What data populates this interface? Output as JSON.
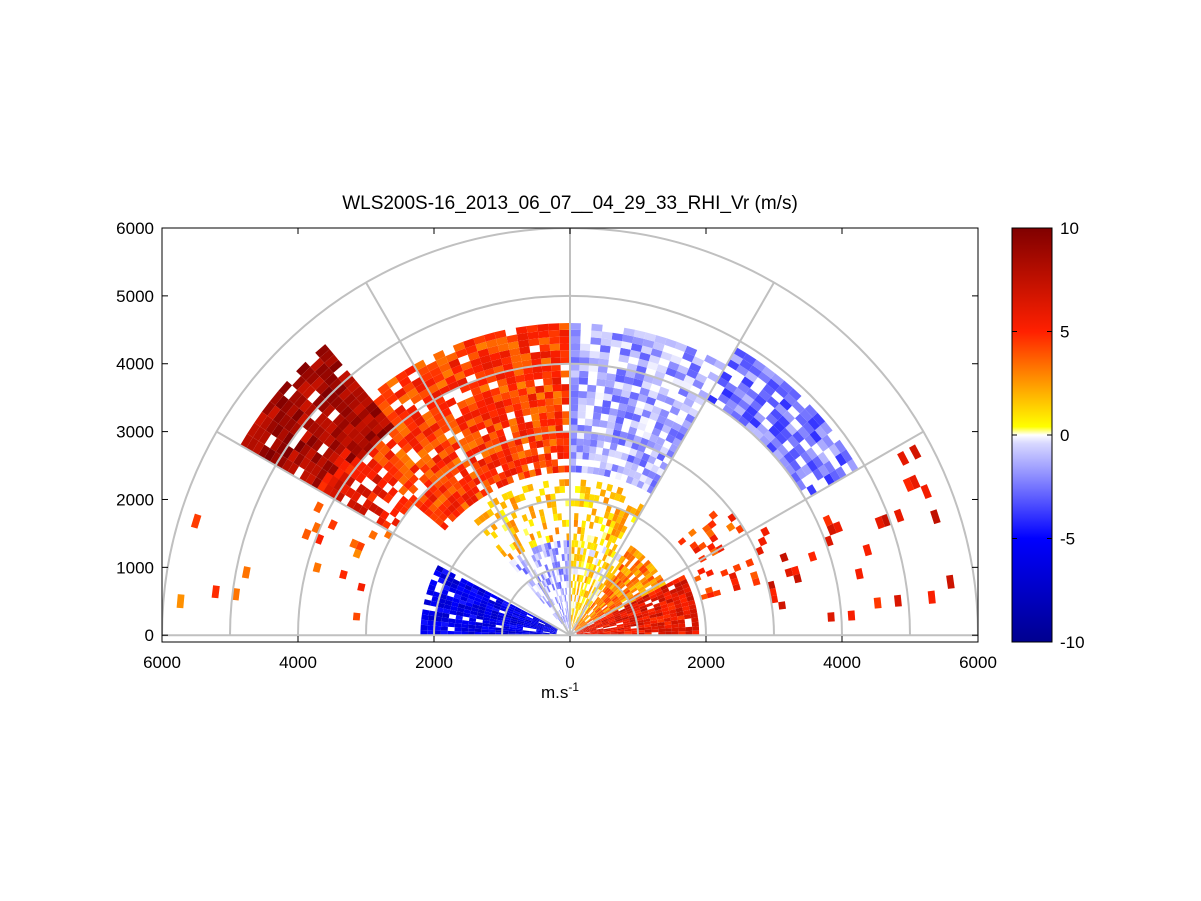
{
  "chart_data": {
    "type": "heatmap",
    "subtype": "polar-rhi-sector",
    "title": "WLS200S-16_2013_06_07__04_29_33_RHI_Vr (m/s)",
    "xlabel_base": "m.s",
    "xlabel_sup": "-1",
    "xlim": [
      -6000,
      6000
    ],
    "ylim": [
      -100,
      6000
    ],
    "x_tick_values": [
      -6000,
      -4000,
      -2000,
      0,
      2000,
      4000,
      6000
    ],
    "x_tick_labels": [
      "6000",
      "4000",
      "2000",
      "0",
      "2000",
      "4000",
      "6000"
    ],
    "y_tick_values": [
      0,
      1000,
      2000,
      3000,
      4000,
      5000,
      6000
    ],
    "y_tick_labels": [
      "0",
      "1000",
      "2000",
      "3000",
      "4000",
      "5000",
      "6000"
    ],
    "range_rings": [
      1000,
      2000,
      3000,
      4000,
      5000,
      6000
    ],
    "spoke_angles_deg": [
      0,
      30,
      60,
      90,
      120,
      150,
      180
    ],
    "colorbar": {
      "min": -10,
      "max": 10,
      "tick_values": [
        10,
        5,
        0,
        -5,
        -10
      ],
      "tick_labels": [
        "10",
        "5",
        "0",
        "-5",
        "-10"
      ],
      "colormap": "blue-white-yellow-red"
    },
    "regions": [
      {
        "r": [
          100,
          1900
        ],
        "theta_deg": [
          0,
          28
        ],
        "value": 6,
        "density": 0.95
      },
      {
        "r": [
          100,
          1600
        ],
        "theta_deg": [
          28,
          55
        ],
        "value": 3,
        "density": 0.85
      },
      {
        "r": [
          100,
          1400
        ],
        "theta_deg": [
          55,
          90
        ],
        "value": 1,
        "density": 0.7
      },
      {
        "r": [
          100,
          1400
        ],
        "theta_deg": [
          90,
          130
        ],
        "value": -1.5,
        "density": 0.6
      },
      {
        "r": [
          200,
          2200
        ],
        "theta_deg": [
          152,
          180
        ],
        "value": -6,
        "density": 0.9
      },
      {
        "r": [
          1400,
          2300
        ],
        "theta_deg": [
          60,
          130
        ],
        "value": 1.5,
        "density": 0.45
      },
      {
        "r": [
          2400,
          4600
        ],
        "theta_deg": [
          90,
          140
        ],
        "value": 4.5,
        "density": 0.9
      },
      {
        "r": [
          4000,
          5600
        ],
        "theta_deg": [
          130,
          150
        ],
        "value": 8.5,
        "density": 0.9
      },
      {
        "r": [
          3000,
          4300
        ],
        "theta_deg": [
          140,
          150
        ],
        "value": 6,
        "density": 0.7
      },
      {
        "r": [
          2400,
          4600
        ],
        "theta_deg": [
          60,
          90
        ],
        "value": -1.5,
        "density": 0.75
      },
      {
        "r": [
          4000,
          4900
        ],
        "theta_deg": [
          30,
          60
        ],
        "value": -2.5,
        "density": 0.85
      },
      {
        "r": [
          2000,
          3000
        ],
        "theta_deg": [
          15,
          40
        ],
        "value": 4.5,
        "density": 0.25
      },
      {
        "r": [
          3000,
          5800
        ],
        "theta_deg": [
          3,
          28
        ],
        "value": 6,
        "density": 0.07
      },
      {
        "r": [
          3000,
          5800
        ],
        "theta_deg": [
          150,
          175
        ],
        "value": 4,
        "density": 0.06
      }
    ]
  }
}
